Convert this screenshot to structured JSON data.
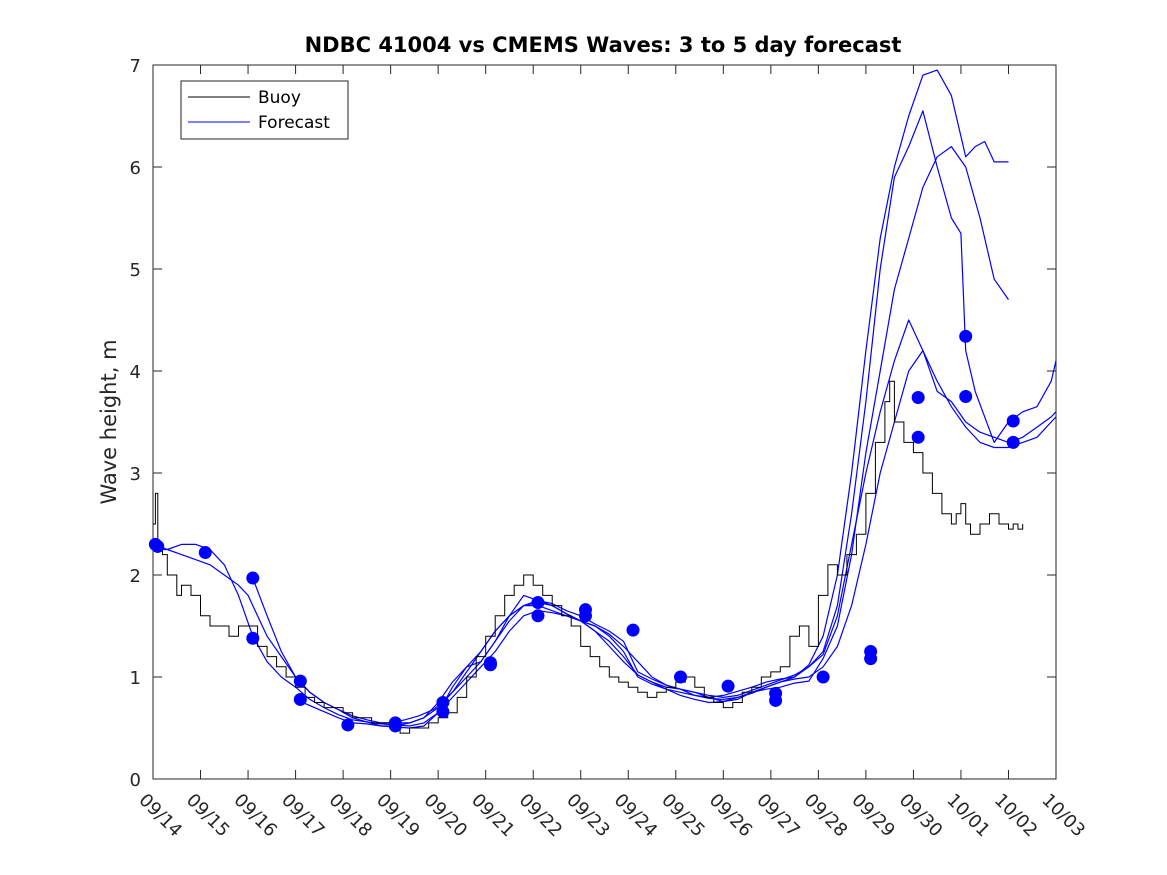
{
  "chart_data": {
    "type": "line",
    "title": "NDBC 41004 vs CMEMS Waves: 3 to 5 day forecast",
    "xlabel": "",
    "ylabel": "Wave height, m",
    "xlim": [
      0,
      19
    ],
    "ylim": [
      0,
      7
    ],
    "grid": false,
    "legend_position": "top-left",
    "legend": [
      "Buoy",
      "Forecast"
    ],
    "x_tick_labels": [
      "09/14",
      "09/15",
      "09/16",
      "09/17",
      "09/18",
      "09/19",
      "09/20",
      "09/21",
      "09/22",
      "09/23",
      "09/24",
      "09/25",
      "09/26",
      "09/27",
      "09/28",
      "09/29",
      "09/30",
      "10/01",
      "10/02",
      "10/03"
    ],
    "y_ticks": [
      0,
      1,
      2,
      3,
      4,
      5,
      6,
      7
    ],
    "colors": {
      "buoy": "#000000",
      "forecast": "#0000ff"
    },
    "buoy": {
      "name": "Buoy",
      "x": [
        0,
        0.05,
        0.1,
        0.2,
        0.3,
        0.5,
        0.6,
        0.8,
        1.0,
        1.2,
        1.4,
        1.6,
        1.8,
        2.0,
        2.2,
        2.4,
        2.6,
        2.8,
        3.0,
        3.2,
        3.4,
        3.6,
        3.8,
        4.0,
        4.2,
        4.4,
        4.6,
        4.8,
        5.0,
        5.2,
        5.4,
        5.6,
        5.8,
        6.0,
        6.2,
        6.4,
        6.6,
        6.8,
        7.0,
        7.2,
        7.4,
        7.6,
        7.8,
        8.0,
        8.2,
        8.4,
        8.6,
        8.8,
        9.0,
        9.2,
        9.4,
        9.6,
        9.8,
        10.0,
        10.2,
        10.4,
        10.6,
        10.8,
        11.0,
        11.2,
        11.4,
        11.6,
        11.8,
        12.0,
        12.2,
        12.4,
        12.6,
        12.8,
        13.0,
        13.2,
        13.4,
        13.6,
        13.8,
        14.0,
        14.2,
        14.4,
        14.6,
        14.8,
        15.0,
        15.2,
        15.4,
        15.5,
        15.6,
        15.8,
        16.0,
        16.2,
        16.4,
        16.6,
        16.8,
        16.9,
        17.0,
        17.1,
        17.2,
        17.4,
        17.6,
        17.8,
        18.0,
        18.1,
        18.2,
        18.3
      ],
      "values": [
        2.5,
        2.8,
        2.3,
        2.2,
        2.0,
        1.8,
        1.9,
        1.8,
        1.6,
        1.5,
        1.5,
        1.4,
        1.5,
        1.5,
        1.3,
        1.2,
        1.1,
        1.0,
        0.9,
        0.8,
        0.75,
        0.7,
        0.7,
        0.65,
        0.6,
        0.6,
        0.55,
        0.55,
        0.5,
        0.45,
        0.5,
        0.5,
        0.55,
        0.6,
        0.65,
        0.8,
        1.0,
        1.2,
        1.4,
        1.6,
        1.8,
        1.9,
        2.0,
        1.9,
        1.8,
        1.7,
        1.6,
        1.5,
        1.3,
        1.2,
        1.1,
        1.0,
        0.95,
        0.9,
        0.85,
        0.8,
        0.85,
        0.9,
        0.95,
        1.0,
        0.9,
        0.8,
        0.75,
        0.7,
        0.75,
        0.85,
        0.9,
        1.0,
        1.05,
        1.1,
        1.4,
        1.5,
        1.3,
        1.8,
        2.1,
        2.0,
        2.2,
        2.4,
        2.8,
        3.3,
        3.7,
        3.9,
        3.5,
        3.3,
        3.2,
        3.0,
        2.8,
        2.6,
        2.5,
        2.6,
        2.7,
        2.5,
        2.4,
        2.5,
        2.6,
        2.5,
        2.45,
        2.5,
        2.45,
        2.5
      ]
    },
    "forecast_series": [
      {
        "name": "Forecast",
        "x": [
          0,
          0.3,
          0.6,
          0.9,
          1.2,
          1.5,
          1.8,
          2.0,
          2.1,
          2.4,
          2.7,
          3.0,
          3.3,
          3.6,
          3.9,
          4.2,
          4.5,
          4.8,
          5.1,
          5.4,
          5.7,
          6.0,
          6.3,
          6.6,
          6.9,
          7.2,
          7.5,
          7.8,
          8.1,
          8.4,
          8.7,
          9.0,
          9.3,
          9.6,
          9.9,
          10.2,
          10.5,
          10.8,
          11.1,
          11.4,
          11.7,
          12.0,
          12.3,
          12.6,
          12.9,
          13.2,
          13.5,
          13.8,
          14.1,
          14.4,
          14.7,
          15.0,
          15.3,
          15.6,
          15.9,
          16.2,
          16.5,
          16.8,
          17.1,
          17.4,
          17.7,
          18.0,
          18.3,
          18.6,
          18.9,
          19.0
        ],
        "values": [
          2.3,
          2.25,
          2.2,
          2.15,
          2.1,
          2.0,
          1.9,
          1.8,
          1.7,
          1.4,
          1.2,
          1.0,
          0.85,
          0.75,
          0.68,
          0.62,
          0.58,
          0.55,
          0.55,
          0.55,
          0.6,
          0.7,
          0.85,
          1.05,
          1.25,
          1.45,
          1.6,
          1.7,
          1.73,
          1.7,
          1.62,
          1.55,
          1.45,
          1.3,
          1.15,
          1.02,
          0.95,
          0.9,
          0.88,
          0.85,
          0.82,
          0.8,
          0.82,
          0.87,
          0.92,
          0.97,
          1.02,
          1.1,
          1.22,
          1.6,
          2.3,
          3.0,
          3.6,
          4.1,
          4.5,
          4.2,
          3.8,
          3.7,
          3.5,
          3.4,
          3.35,
          3.3,
          3.35,
          3.45,
          3.55,
          3.6
        ]
      },
      {
        "name": "Forecast",
        "x": [
          0,
          0.3,
          0.6,
          0.9,
          1.2,
          1.5,
          1.8,
          2.1,
          2.4,
          2.7,
          3.0,
          3.3,
          3.6,
          3.9,
          4.2,
          4.5,
          4.8,
          5.1,
          5.4,
          5.7,
          6.0,
          6.3,
          6.6,
          6.9,
          7.2,
          7.5,
          7.8,
          8.1,
          8.4,
          8.7,
          9.0,
          9.3,
          9.6,
          9.9,
          10.2,
          10.5,
          10.8,
          11.1,
          11.4,
          11.7,
          12.0,
          12.3,
          12.6,
          12.9,
          13.2,
          13.5,
          13.8,
          14.1,
          14.4,
          14.7,
          15.0,
          15.3,
          15.6,
          15.9,
          16.2,
          16.5,
          16.8,
          17.1,
          17.4,
          17.7,
          18.0,
          18.3,
          18.6,
          18.9,
          19.0
        ],
        "values": [
          2.25,
          2.25,
          2.3,
          2.3,
          2.25,
          2.1,
          1.8,
          1.4,
          1.15,
          1.0,
          0.9,
          0.78,
          0.7,
          0.63,
          0.58,
          0.56,
          0.54,
          0.53,
          0.52,
          0.55,
          0.65,
          0.8,
          0.95,
          1.1,
          1.25,
          1.45,
          1.6,
          1.65,
          1.63,
          1.6,
          1.55,
          1.5,
          1.42,
          1.3,
          1.15,
          1.0,
          0.92,
          0.88,
          0.85,
          0.8,
          0.76,
          0.78,
          0.85,
          0.9,
          0.95,
          0.98,
          1.0,
          1.1,
          1.3,
          1.7,
          2.3,
          3.0,
          3.5,
          4.0,
          4.2,
          3.9,
          3.65,
          3.45,
          3.3,
          3.25,
          3.25,
          3.3,
          3.35,
          3.5,
          3.55
        ]
      },
      {
        "name": "Forecast",
        "x": [
          2.1,
          2.4,
          2.7,
          3.0,
          3.3,
          3.6,
          3.9,
          4.2,
          4.5,
          4.8,
          5.1,
          5.4,
          5.7,
          6.0,
          6.3,
          6.6,
          6.9,
          7.2,
          7.5,
          7.8,
          8.1,
          8.4,
          8.7,
          9.0,
          9.3,
          9.6,
          9.9,
          10.2,
          10.5,
          10.8,
          11.1,
          11.4,
          11.7,
          12.0,
          12.3,
          12.6,
          12.9,
          13.2,
          13.5,
          13.8,
          14.1,
          14.4,
          14.7,
          15.0,
          15.3,
          15.6,
          15.9,
          16.2,
          16.5,
          16.8,
          17.1,
          17.3,
          17.5,
          17.7,
          18.0
        ],
        "values": [
          1.97,
          1.6,
          1.25,
          1.0,
          0.85,
          0.75,
          0.68,
          0.6,
          0.56,
          0.52,
          0.52,
          0.55,
          0.6,
          0.75,
          0.95,
          1.1,
          1.15,
          1.35,
          1.6,
          1.8,
          1.75,
          1.72,
          1.65,
          1.6,
          1.52,
          1.45,
          1.35,
          1.05,
          0.98,
          0.92,
          0.88,
          0.82,
          0.79,
          0.78,
          0.8,
          0.84,
          0.9,
          0.95,
          1.0,
          1.12,
          1.4,
          2.0,
          3.0,
          4.2,
          5.3,
          6.0,
          6.5,
          6.9,
          6.95,
          6.7,
          6.1,
          6.2,
          6.25,
          6.05,
          6.05
        ]
      },
      {
        "name": "Forecast",
        "x": [
          3.0,
          3.3,
          3.6,
          3.9,
          4.2,
          4.5,
          4.8,
          5.1,
          5.4,
          5.7,
          6.0,
          6.3,
          6.6,
          6.9,
          7.2,
          7.5,
          7.8,
          8.1,
          8.4,
          8.7,
          9.0,
          9.3,
          9.6,
          9.9,
          10.2,
          10.5,
          10.8,
          11.1,
          11.4,
          11.7,
          12.0,
          12.3,
          12.6,
          12.9,
          13.2,
          13.5,
          13.8,
          14.1,
          14.4,
          14.7,
          15.0,
          15.3,
          15.6,
          15.9,
          16.2,
          16.5,
          16.8,
          17.1,
          17.4,
          17.7,
          18.0
        ],
        "values": [
          0.78,
          0.72,
          0.66,
          0.6,
          0.55,
          0.54,
          0.52,
          0.51,
          0.5,
          0.52,
          0.65,
          0.9,
          1.1,
          1.25,
          1.45,
          1.6,
          1.7,
          1.75,
          1.7,
          1.62,
          1.55,
          1.45,
          1.35,
          1.2,
          1.02,
          0.95,
          0.88,
          0.82,
          0.78,
          0.75,
          0.76,
          0.8,
          0.85,
          0.88,
          0.9,
          0.94,
          0.96,
          1.18,
          1.5,
          2.2,
          3.2,
          4.0,
          4.8,
          5.3,
          5.8,
          6.1,
          6.2,
          6.0,
          5.5,
          4.9,
          4.7
        ]
      },
      {
        "name": "Forecast",
        "x": [
          5.0,
          5.3,
          5.6,
          5.9,
          6.0,
          6.3,
          6.6,
          6.9,
          7.2,
          7.5,
          7.8,
          8.1,
          8.4,
          8.7,
          9.0,
          9.3,
          9.6,
          9.9,
          10.2,
          10.5,
          10.8,
          11.1,
          11.4,
          11.7,
          12.0,
          12.3,
          12.6,
          12.9,
          13.2,
          13.5,
          13.8,
          14.1,
          14.4,
          14.7,
          15.0,
          15.3,
          15.6,
          15.9,
          16.2,
          16.5,
          16.8,
          17.0,
          17.1,
          17.3,
          17.5,
          17.7,
          18.0,
          18.3,
          18.6,
          18.9,
          19.0
        ],
        "values": [
          0.55,
          0.58,
          0.62,
          0.68,
          0.72,
          0.85,
          1.0,
          1.15,
          1.35,
          1.55,
          1.7,
          1.7,
          1.65,
          1.6,
          1.55,
          1.5,
          1.4,
          1.25,
          1.0,
          0.93,
          0.88,
          0.85,
          0.82,
          0.8,
          0.82,
          0.86,
          0.9,
          0.95,
          0.98,
          1.0,
          1.1,
          1.25,
          1.7,
          2.6,
          3.7,
          5.0,
          5.9,
          6.2,
          6.55,
          6.0,
          5.5,
          5.35,
          4.2,
          3.8,
          3.55,
          3.3,
          3.5,
          3.6,
          3.65,
          3.9,
          4.1
        ]
      }
    ],
    "forecast_markers": {
      "x": [
        0.05,
        0.1,
        1.1,
        2.1,
        2.1,
        3.1,
        3.1,
        4.1,
        5.1,
        5.1,
        6.1,
        6.1,
        7.1,
        7.1,
        8.1,
        8.1,
        9.1,
        9.1,
        10.1,
        11.1,
        12.1,
        13.1,
        13.1,
        14.1,
        15.1,
        15.1,
        16.1,
        16.1,
        17.1,
        17.1,
        18.1,
        18.1
      ],
      "values": [
        2.3,
        2.28,
        2.22,
        1.97,
        1.38,
        0.96,
        0.78,
        0.53,
        0.55,
        0.52,
        0.75,
        0.66,
        1.14,
        1.12,
        1.73,
        1.6,
        1.66,
        1.6,
        1.46,
        1.0,
        0.91,
        0.84,
        0.77,
        1.0,
        1.25,
        1.18,
        3.74,
        3.35,
        4.34,
        3.75,
        3.51,
        3.3
      ]
    }
  }
}
